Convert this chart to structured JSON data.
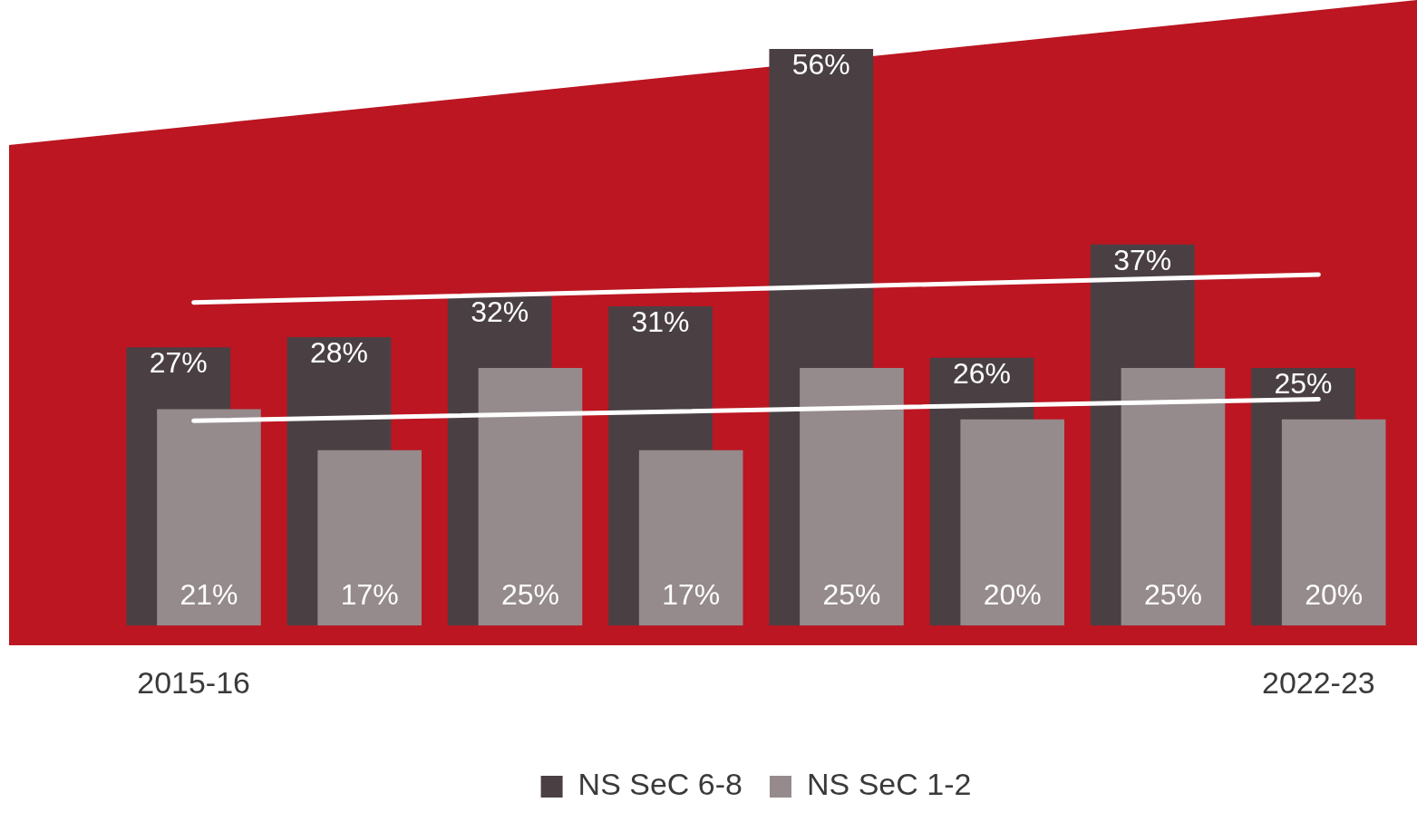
{
  "chart_data": {
    "type": "bar",
    "categories": [
      "2015-16",
      null,
      null,
      null,
      null,
      null,
      null,
      "2022-23"
    ],
    "series": [
      {
        "name": "NS SeC 6-8",
        "color": "#4a4044",
        "values": [
          27,
          28,
          32,
          31,
          56,
          26,
          37,
          25
        ],
        "value_labels": [
          "27%",
          "28%",
          "32%",
          "31%",
          "56%",
          "26%",
          "37%",
          "25%"
        ]
      },
      {
        "name": "NS SeC 1-2",
        "color": "#958a8c",
        "values": [
          21,
          17,
          25,
          17,
          25,
          20,
          25,
          20
        ],
        "value_labels": [
          "21%",
          "17%",
          "25%",
          "17%",
          "25%",
          "20%",
          "25%",
          "20%"
        ]
      },
      {
        "type": "line",
        "color": "#ffffff",
        "x": [
          "2015-16",
          "2022-23"
        ],
        "values": [
          31.4,
          34.1
        ]
      },
      {
        "type": "line",
        "color": "#ffffff",
        "x": [
          "2015-16",
          "2022-23"
        ],
        "values": [
          19.9,
          22.0
        ]
      }
    ],
    "legend": "bottom",
    "grid": false,
    "tick_labels": "x"
  }
}
